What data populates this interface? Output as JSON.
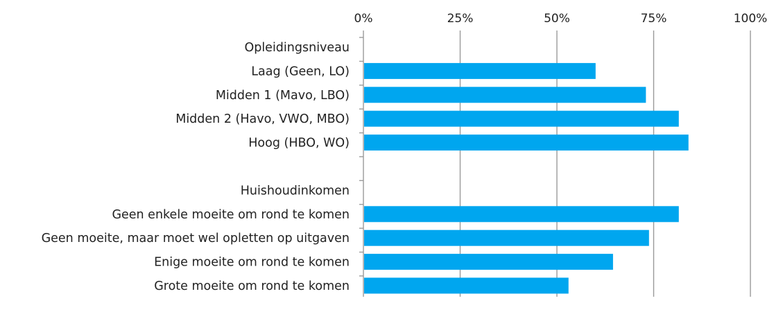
{
  "chart_data": {
    "type": "bar",
    "orientation": "horizontal",
    "title": "",
    "xlabel": "",
    "ylabel": "",
    "xlim": [
      0,
      100
    ],
    "x_ticks": [
      "0%",
      "25%",
      "50%",
      "75%",
      "100%"
    ],
    "x_tick_values": [
      0,
      25,
      50,
      75,
      100
    ],
    "grid": true,
    "legend": "none",
    "bar_color": "#00a6ef",
    "rows": [
      {
        "label": "Opleidingsniveau",
        "header": true
      },
      {
        "label": "Laag (Geen, LO)",
        "value": 60
      },
      {
        "label": "Midden 1 (Mavo, LBO)",
        "value": 73
      },
      {
        "label": "Midden 2 (Havo, VWO, MBO)",
        "value": 81.5
      },
      {
        "label": "Hoog (HBO, WO)",
        "value": 84
      },
      {
        "label": "",
        "spacer": true
      },
      {
        "label": "Huishoudinkomen",
        "header": true
      },
      {
        "label": "Geen enkele moeite om rond te komen",
        "value": 81.5
      },
      {
        "label": "Geen moeite, maar moet wel opletten op uitgaven",
        "value": 73.8
      },
      {
        "label": "Enige moeite om rond te komen",
        "value": 64.5
      },
      {
        "label": "Grote moeite om rond te komen",
        "value": 53
      }
    ]
  }
}
